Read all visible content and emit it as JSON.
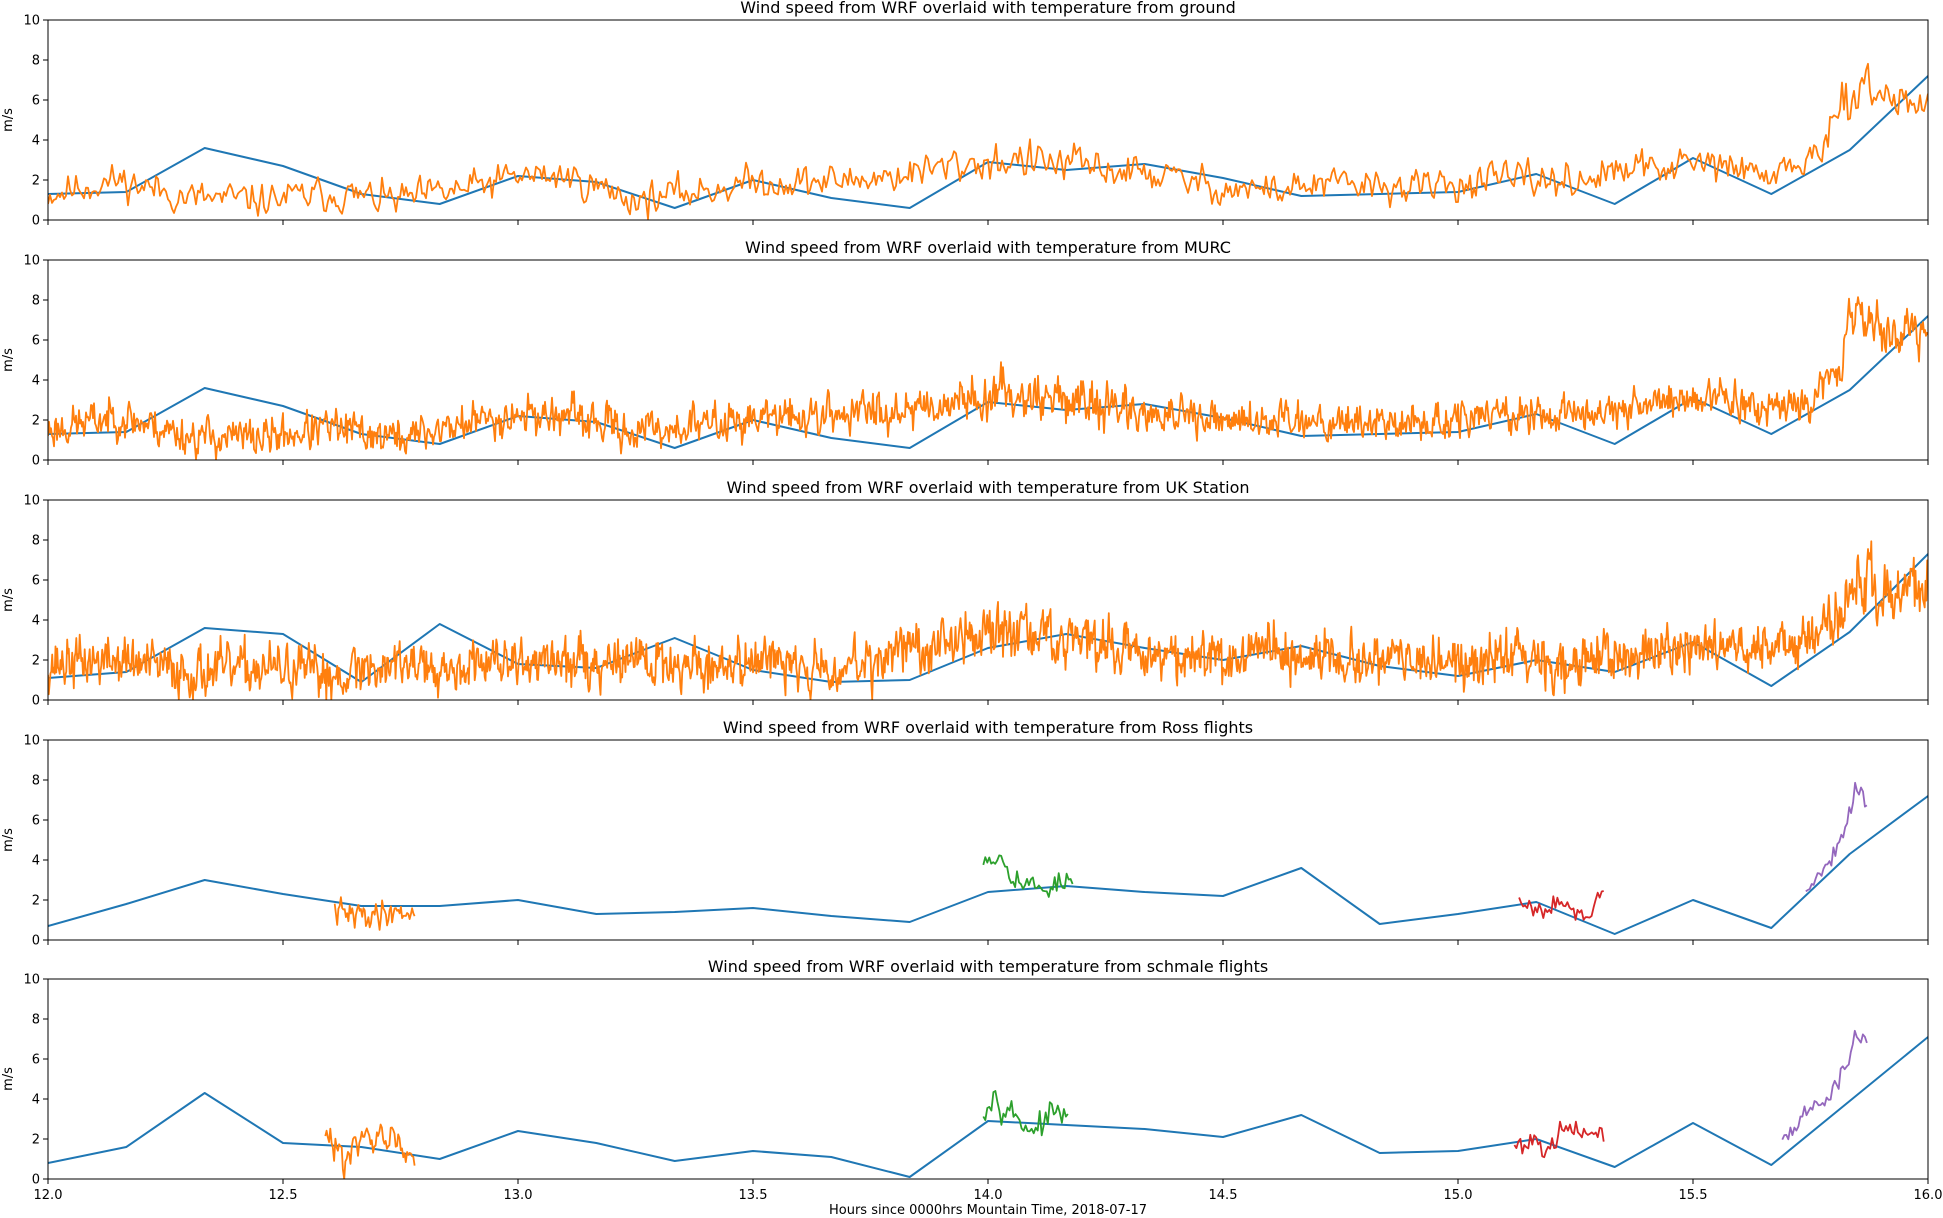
{
  "chart_data": {
    "type": "line",
    "shared_x": {
      "xlabel": "Hours since 0000hrs Mountain Time, 2018-07-17",
      "xlim": [
        12.0,
        16.0
      ],
      "xticks": [
        "12.0",
        "12.5",
        "13.0",
        "13.5",
        "14.0",
        "14.5",
        "15.0",
        "15.5",
        "16.0"
      ]
    },
    "colors": {
      "wrf": "#1f77b4",
      "orange": "#ff7f0e",
      "green": "#2ca02c",
      "red": "#d62728",
      "purple": "#9467bd"
    },
    "panels": [
      {
        "title": "Wind speed from WRF overlaid with temperature from ground",
        "ylabel": "m/s",
        "ylim": [
          0,
          10
        ],
        "yticks": [
          "0",
          "2",
          "4",
          "6",
          "8",
          "10"
        ],
        "series": [
          {
            "color": "wrf",
            "x": [
              12.0,
              12.1667,
              12.3333,
              12.5,
              12.6667,
              12.8333,
              13.0,
              13.1667,
              13.3333,
              13.5,
              13.6667,
              13.8333,
              14.0,
              14.1667,
              14.3333,
              14.5,
              14.6667,
              14.8333,
              15.0,
              15.1667,
              15.3333,
              15.5,
              15.6667,
              15.8333,
              16.0
            ],
            "y": [
              1.3,
              1.4,
              3.6,
              2.7,
              1.3,
              0.8,
              2.2,
              1.9,
              0.6,
              2.0,
              1.1,
              0.6,
              2.9,
              2.5,
              2.8,
              2.1,
              1.2,
              1.3,
              1.4,
              2.3,
              0.8,
              3.1,
              1.3,
              3.5,
              7.2
            ]
          },
          {
            "color": "orange",
            "noisy": true,
            "density": 0.5,
            "seed": 11,
            "x": [
              12.0,
              12.15,
              12.3,
              12.45,
              12.6,
              12.75,
              12.9,
              13.0,
              13.1,
              13.25,
              13.4,
              13.5,
              13.65,
              13.8,
              13.95,
              14.05,
              14.2,
              14.35,
              14.5,
              14.6,
              14.75,
              14.9,
              15.0,
              15.1,
              15.25,
              15.4,
              15.55,
              15.65,
              15.75,
              15.8,
              15.85,
              15.9,
              16.0
            ],
            "y": [
              1.3,
              2.0,
              1.1,
              1.0,
              1.3,
              1.0,
              1.6,
              2.2,
              2.2,
              1.0,
              1.5,
              1.9,
              1.9,
              2.2,
              2.8,
              3.0,
              2.7,
              2.3,
              1.6,
              1.5,
              1.8,
              1.6,
              1.8,
              2.0,
              2.0,
              2.6,
              2.8,
              2.2,
              3.0,
              4.5,
              7.0,
              6.2,
              5.8
            ],
            "noise": [
              0.6,
              0.6,
              0.6,
              0.6,
              0.6,
              0.6,
              0.6,
              0.6,
              0.6,
              0.6,
              0.6,
              0.6,
              0.6,
              0.6,
              0.7,
              0.7,
              0.7,
              0.6,
              0.6,
              0.6,
              0.6,
              0.6,
              0.6,
              0.6,
              0.6,
              0.6,
              0.6,
              0.6,
              0.6,
              0.7,
              0.8,
              0.8,
              0.7
            ]
          }
        ]
      },
      {
        "title": "Wind speed from WRF overlaid with temperature from MURC",
        "ylabel": "m/s",
        "ylim": [
          0,
          10
        ],
        "yticks": [
          "0",
          "2",
          "4",
          "6",
          "8",
          "10"
        ],
        "series": [
          {
            "color": "wrf",
            "x": [
              12.0,
              12.1667,
              12.3333,
              12.5,
              12.6667,
              12.8333,
              13.0,
              13.1667,
              13.3333,
              13.5,
              13.6667,
              13.8333,
              14.0,
              14.1667,
              14.3333,
              14.5,
              14.6667,
              14.8333,
              15.0,
              15.1667,
              15.3333,
              15.5,
              15.6667,
              15.8333,
              16.0
            ],
            "y": [
              1.3,
              1.4,
              3.6,
              2.7,
              1.3,
              0.8,
              2.2,
              1.9,
              0.6,
              2.0,
              1.1,
              0.6,
              2.9,
              2.5,
              2.8,
              2.1,
              1.2,
              1.3,
              1.4,
              2.3,
              0.8,
              3.1,
              1.3,
              3.5,
              7.2
            ]
          },
          {
            "color": "orange",
            "noisy": true,
            "density": 1.0,
            "seed": 23,
            "x": [
              12.0,
              12.15,
              12.3,
              12.45,
              12.6,
              12.75,
              12.9,
              13.0,
              13.1,
              13.25,
              13.4,
              13.5,
              13.65,
              13.8,
              13.95,
              14.05,
              14.2,
              14.35,
              14.5,
              14.6,
              14.75,
              14.9,
              15.0,
              15.1,
              15.25,
              15.4,
              15.55,
              15.65,
              15.75,
              15.8,
              15.85,
              15.9,
              16.0
            ],
            "y": [
              1.5,
              2.2,
              1.2,
              1.1,
              1.6,
              1.1,
              1.9,
              2.3,
              2.2,
              1.4,
              1.8,
              2.1,
              2.2,
              2.6,
              3.0,
              3.4,
              2.9,
              2.3,
              1.8,
              2.1,
              2.0,
              1.8,
              2.0,
              2.3,
              2.2,
              2.9,
              3.1,
              2.6,
              3.2,
              4.5,
              7.5,
              6.6,
              6.2
            ],
            "noise": [
              0.7,
              0.7,
              0.7,
              0.7,
              0.7,
              0.7,
              0.7,
              0.7,
              0.7,
              0.7,
              0.7,
              0.7,
              0.7,
              0.8,
              0.8,
              0.8,
              0.8,
              0.7,
              0.7,
              0.7,
              0.7,
              0.7,
              0.7,
              0.7,
              0.7,
              0.7,
              0.7,
              0.7,
              0.7,
              0.8,
              0.9,
              0.9,
              0.8
            ]
          }
        ]
      },
      {
        "title": "Wind speed from WRF overlaid with temperature from UK Station",
        "ylabel": "m/s",
        "ylim": [
          0,
          10
        ],
        "yticks": [
          "0",
          "2",
          "4",
          "6",
          "8",
          "10"
        ],
        "series": [
          {
            "color": "wrf",
            "x": [
              12.0,
              12.1667,
              12.3333,
              12.5,
              12.6667,
              12.8333,
              13.0,
              13.1667,
              13.3333,
              13.5,
              13.6667,
              13.8333,
              14.0,
              14.1667,
              14.3333,
              14.5,
              14.6667,
              14.8333,
              15.0,
              15.1667,
              15.3333,
              15.5,
              15.6667,
              15.8333,
              16.0
            ],
            "y": [
              1.1,
              1.4,
              3.6,
              3.3,
              0.9,
              3.8,
              1.8,
              1.6,
              3.1,
              1.5,
              0.9,
              1.0,
              2.6,
              3.3,
              2.6,
              2.0,
              2.7,
              1.7,
              1.2,
              2.0,
              1.4,
              2.9,
              0.7,
              3.4,
              7.3
            ]
          },
          {
            "color": "orange",
            "noisy": true,
            "density": 1.2,
            "seed": 37,
            "x": [
              12.0,
              12.15,
              12.3,
              12.45,
              12.6,
              12.75,
              12.9,
              13.0,
              13.1,
              13.25,
              13.4,
              13.5,
              13.65,
              13.8,
              13.95,
              14.05,
              14.2,
              14.35,
              14.5,
              14.6,
              14.75,
              14.9,
              15.0,
              15.1,
              15.25,
              15.4,
              15.55,
              15.65,
              15.75,
              15.8,
              15.85,
              15.9,
              16.0
            ],
            "y": [
              1.8,
              2.0,
              1.4,
              1.6,
              1.3,
              1.9,
              1.8,
              1.8,
              1.9,
              2.1,
              1.6,
              2.1,
              1.5,
              2.4,
              3.1,
              3.5,
              2.9,
              2.4,
              2.0,
              2.3,
              2.0,
              1.9,
              1.8,
              2.2,
              1.8,
              2.4,
              2.8,
              2.5,
              3.0,
              4.0,
              6.3,
              5.5,
              5.3
            ],
            "noise": [
              0.9,
              0.9,
              0.9,
              0.9,
              0.9,
              0.9,
              0.9,
              0.9,
              0.9,
              0.9,
              0.9,
              0.9,
              0.9,
              0.9,
              1.0,
              1.0,
              1.0,
              0.9,
              0.9,
              0.9,
              0.9,
              0.9,
              0.9,
              0.9,
              0.9,
              0.9,
              0.9,
              0.9,
              0.9,
              1.0,
              1.2,
              1.1,
              1.0
            ]
          }
        ]
      },
      {
        "title": "Wind speed from WRF overlaid with temperature from Ross flights",
        "ylabel": "m/s",
        "ylim": [
          0,
          10
        ],
        "yticks": [
          "0",
          "2",
          "4",
          "6",
          "8",
          "10"
        ],
        "series": [
          {
            "color": "wrf",
            "x": [
              12.0,
              12.1667,
              12.3333,
              12.5,
              12.6667,
              12.8333,
              13.0,
              13.1667,
              13.3333,
              13.5,
              13.6667,
              13.8333,
              14.0,
              14.1667,
              14.3333,
              14.5,
              14.6667,
              14.8333,
              15.0,
              15.1667,
              15.3333,
              15.5,
              15.6667,
              15.8333,
              16.0
            ],
            "y": [
              0.7,
              1.8,
              3.0,
              2.3,
              1.7,
              1.7,
              2.0,
              1.3,
              1.4,
              1.6,
              1.2,
              0.9,
              2.4,
              2.7,
              2.4,
              2.2,
              3.6,
              0.8,
              1.3,
              1.9,
              0.3,
              2.0,
              0.6,
              4.3,
              7.2
            ]
          },
          {
            "color": "orange",
            "noisy": true,
            "density": 0.8,
            "seed": 41,
            "x": [
              12.61,
              12.65,
              12.7,
              12.75,
              12.78
            ],
            "y": [
              1.4,
              1.2,
              1.3,
              1.5,
              1.3
            ],
            "noise": [
              0.5,
              0.5,
              0.5,
              0.5,
              0.4
            ]
          },
          {
            "color": "green",
            "noisy": true,
            "density": 0.5,
            "seed": 53,
            "x": [
              13.99,
              14.03,
              14.07,
              14.1,
              14.13,
              14.18
            ],
            "y": [
              4.3,
              4.2,
              3.0,
              2.5,
              2.8,
              2.9
            ],
            "noise": [
              0.4,
              0.5,
              0.5,
              0.5,
              0.5,
              0.4
            ]
          },
          {
            "color": "red",
            "noisy": true,
            "density": 0.5,
            "seed": 67,
            "x": [
              15.13,
              15.17,
              15.21,
              15.25,
              15.28,
              15.31
            ],
            "y": [
              2.2,
              1.5,
              2.4,
              1.1,
              1.0,
              2.8
            ],
            "noise": [
              0.3,
              0.4,
              0.5,
              0.3,
              0.3,
              0.3
            ]
          },
          {
            "color": "purple",
            "noisy": true,
            "density": 0.5,
            "seed": 79,
            "x": [
              15.74,
              15.77,
              15.8,
              15.83,
              15.85,
              15.87
            ],
            "y": [
              2.4,
              3.4,
              4.4,
              6.3,
              7.8,
              6.5
            ],
            "noise": [
              0.2,
              0.3,
              0.4,
              0.5,
              0.6,
              0.5
            ]
          }
        ]
      },
      {
        "title": "Wind speed from WRF overlaid with temperature from schmale flights",
        "ylabel": "m/s",
        "ylim": [
          0,
          10
        ],
        "yticks": [
          "0",
          "2",
          "4",
          "6",
          "8",
          "10"
        ],
        "series": [
          {
            "color": "wrf",
            "x": [
              12.0,
              12.1667,
              12.3333,
              12.5,
              12.6667,
              12.8333,
              13.0,
              13.1667,
              13.3333,
              13.5,
              13.6667,
              13.8333,
              14.0,
              14.1667,
              14.3333,
              14.5,
              14.6667,
              14.8333,
              15.0,
              15.1667,
              15.3333,
              15.5,
              15.6667,
              15.8333,
              16.0
            ],
            "y": [
              0.8,
              1.6,
              4.3,
              1.8,
              1.6,
              1.0,
              2.4,
              1.8,
              0.9,
              1.4,
              1.1,
              0.1,
              2.9,
              2.7,
              2.5,
              2.1,
              3.2,
              1.3,
              1.4,
              2.0,
              0.6,
              2.8,
              0.7,
              3.9,
              7.1
            ]
          },
          {
            "color": "orange",
            "noisy": true,
            "density": 0.8,
            "seed": 83,
            "x": [
              12.59,
              12.63,
              12.68,
              12.73,
              12.78
            ],
            "y": [
              2.0,
              1.3,
              1.9,
              2.0,
              1.2
            ],
            "noise": [
              0.5,
              0.6,
              0.6,
              0.6,
              0.4
            ]
          },
          {
            "color": "green",
            "noisy": true,
            "density": 0.5,
            "seed": 97,
            "x": [
              13.99,
              14.02,
              14.06,
              14.1,
              14.14,
              14.17
            ],
            "y": [
              3.6,
              4.4,
              3.0,
              2.5,
              3.2,
              3.3
            ],
            "noise": [
              0.4,
              0.6,
              0.5,
              0.5,
              0.5,
              0.4
            ]
          },
          {
            "color": "red",
            "noisy": true,
            "density": 0.5,
            "seed": 101,
            "x": [
              15.12,
              15.16,
              15.2,
              15.24,
              15.28,
              15.31
            ],
            "y": [
              1.6,
              2.0,
              1.8,
              2.3,
              2.4,
              2.1
            ],
            "noise": [
              0.4,
              0.4,
              0.5,
              0.5,
              0.4,
              0.3
            ]
          },
          {
            "color": "purple",
            "noisy": true,
            "density": 0.5,
            "seed": 113,
            "x": [
              15.69,
              15.73,
              15.77,
              15.81,
              15.84,
              15.87
            ],
            "y": [
              2.1,
              3.0,
              3.8,
              4.6,
              7.2,
              7.0
            ],
            "noise": [
              0.2,
              0.3,
              0.3,
              0.4,
              0.6,
              0.4
            ]
          }
        ]
      }
    ]
  }
}
